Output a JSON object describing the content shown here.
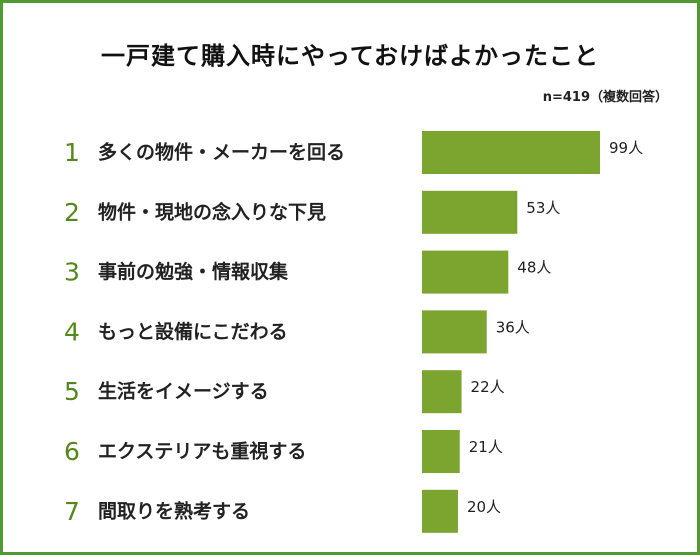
{
  "title": "一戸建て購入時にやっておけばよかったこと",
  "note": "n=419（複数回答）",
  "colors": {
    "bar": "#7ba52e",
    "rank": "#55881c",
    "frame": "#4f9b32"
  },
  "chart_data": {
    "type": "bar",
    "orientation": "horizontal",
    "ranks": [
      "1",
      "2",
      "3",
      "4",
      "5",
      "6",
      "7"
    ],
    "categories": [
      "多くの物件・メーカーを回る",
      "物件・現地の念入りな下見",
      "事前の勉強・情報収集",
      "もっと設備にこだわる",
      "生活をイメージする",
      "エクステリアも重視する",
      "間取りを熟考する"
    ],
    "values": [
      99,
      53,
      48,
      36,
      22,
      21,
      20
    ],
    "value_labels": [
      "99人",
      "53人",
      "48人",
      "36人",
      "22人",
      "21人",
      "20人"
    ],
    "unit": "人",
    "n": 419
  }
}
